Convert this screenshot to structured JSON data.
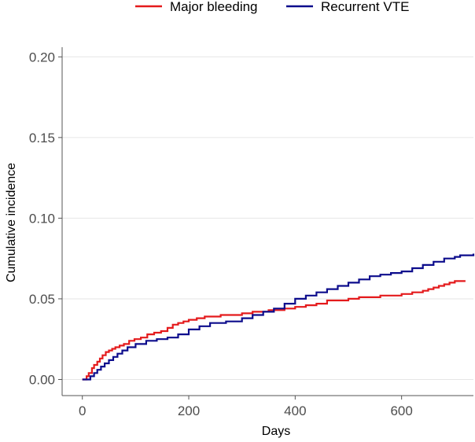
{
  "chart_data": {
    "type": "line",
    "title": "",
    "xlabel": "Days",
    "ylabel": "Cumulative incidence",
    "xlim": [
      -38,
      735
    ],
    "ylim": [
      -0.01,
      0.206
    ],
    "xticks": [
      0,
      200,
      400,
      600
    ],
    "yticks": [
      0.0,
      0.05,
      0.1,
      0.15,
      0.2
    ],
    "xtick_labels": [
      "0",
      "200",
      "400",
      "600"
    ],
    "ytick_labels": [
      "0.00",
      "0.05",
      "0.10",
      "0.15",
      "0.20"
    ],
    "grid": true,
    "legend_position": "top",
    "series": [
      {
        "name": "Major bleeding",
        "color": "#e41a1c",
        "x": [
          0,
          8,
          12,
          18,
          22,
          28,
          33,
          38,
          44,
          50,
          56,
          62,
          70,
          78,
          88,
          98,
          110,
          122,
          135,
          148,
          160,
          170,
          180,
          190,
          200,
          215,
          230,
          260,
          300,
          320,
          350,
          380,
          400,
          420,
          440,
          460,
          500,
          520,
          560,
          600,
          620,
          640,
          650,
          660,
          670,
          680,
          690,
          700,
          720
        ],
        "y": [
          0.0,
          0.002,
          0.004,
          0.007,
          0.009,
          0.011,
          0.013,
          0.015,
          0.017,
          0.018,
          0.019,
          0.02,
          0.021,
          0.022,
          0.024,
          0.025,
          0.026,
          0.028,
          0.029,
          0.03,
          0.032,
          0.034,
          0.035,
          0.036,
          0.037,
          0.038,
          0.039,
          0.04,
          0.041,
          0.042,
          0.043,
          0.044,
          0.045,
          0.046,
          0.047,
          0.049,
          0.05,
          0.051,
          0.052,
          0.053,
          0.054,
          0.055,
          0.056,
          0.057,
          0.058,
          0.059,
          0.06,
          0.061,
          0.061
        ]
      },
      {
        "name": "Recurrent VTE",
        "color": "#0c0c8c",
        "x": [
          0,
          15,
          22,
          28,
          35,
          42,
          50,
          58,
          66,
          75,
          85,
          100,
          120,
          140,
          160,
          180,
          200,
          220,
          240,
          270,
          300,
          320,
          340,
          360,
          380,
          400,
          420,
          440,
          460,
          480,
          500,
          520,
          540,
          560,
          580,
          600,
          620,
          640,
          660,
          680,
          700,
          710,
          720,
          735
        ],
        "y": [
          0.0,
          0.002,
          0.004,
          0.006,
          0.008,
          0.01,
          0.012,
          0.014,
          0.016,
          0.018,
          0.02,
          0.022,
          0.024,
          0.025,
          0.026,
          0.028,
          0.031,
          0.033,
          0.035,
          0.036,
          0.038,
          0.04,
          0.042,
          0.044,
          0.047,
          0.05,
          0.052,
          0.054,
          0.056,
          0.058,
          0.06,
          0.062,
          0.064,
          0.065,
          0.066,
          0.067,
          0.069,
          0.071,
          0.073,
          0.075,
          0.076,
          0.077,
          0.077,
          0.078
        ]
      }
    ]
  }
}
